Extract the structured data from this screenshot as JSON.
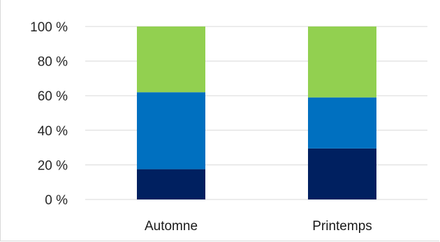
{
  "chart_data": {
    "type": "bar",
    "stacked": true,
    "percent": true,
    "categories": [
      "Automne",
      "Printemps"
    ],
    "series": [
      {
        "color": "#002060",
        "values": [
          17.5,
          29.5
        ]
      },
      {
        "color": "#0070c0",
        "values": [
          44.5,
          29.5
        ]
      },
      {
        "color": "#92d050",
        "values": [
          38.0,
          41.0
        ]
      }
    ],
    "y_ticks": [
      "0 %",
      "20 %",
      "40 %",
      "60 %",
      "80 %",
      "100 %"
    ],
    "ylim": [
      0,
      100
    ],
    "grid": true,
    "legend": "none"
  }
}
